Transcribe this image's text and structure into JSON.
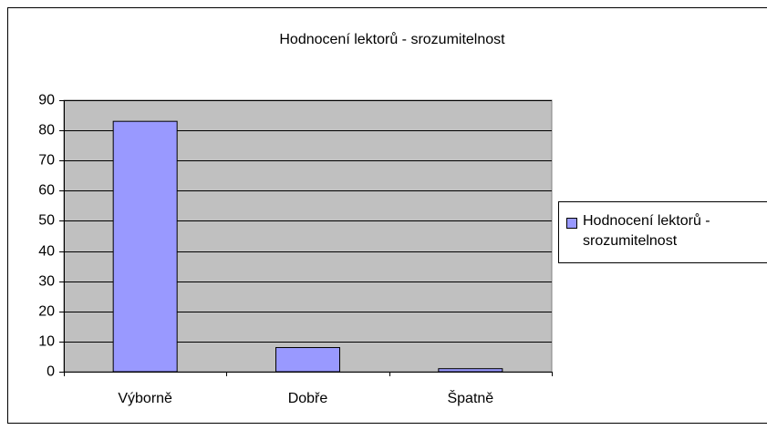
{
  "chart_data": {
    "type": "bar",
    "title": "Hodnocení lektorů - srozumitelnost",
    "categories": [
      "Výborně",
      "Dobře",
      "Špatně"
    ],
    "series": [
      {
        "name": "Hodnocení lektorů - srozumitelnost",
        "color": "#9999ff",
        "values": [
          83,
          8,
          1
        ]
      }
    ],
    "ylim": [
      0,
      90
    ],
    "yticks": [
      0,
      10,
      20,
      30,
      40,
      50,
      60,
      70,
      80,
      90
    ],
    "grid": true,
    "legend": "right"
  }
}
